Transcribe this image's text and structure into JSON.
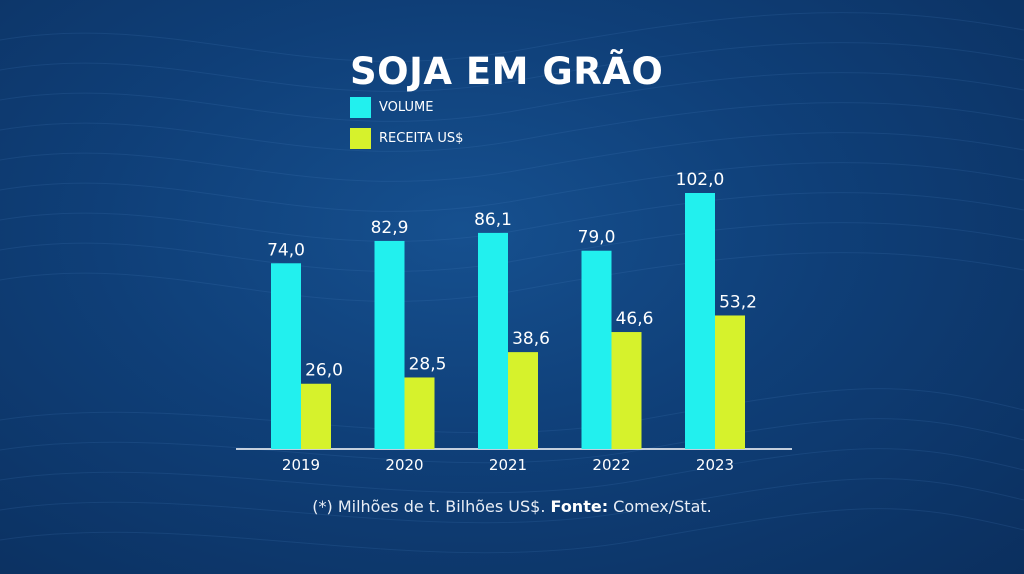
{
  "chart_data": {
    "type": "bar",
    "title": "SOJA EM GRÃO",
    "categories": [
      "2019",
      "2020",
      "2021",
      "2022",
      "2023"
    ],
    "series": [
      {
        "name": "VOLUME",
        "color": "#22f0ee",
        "values": [
          74.0,
          82.9,
          86.1,
          79.0,
          102.0
        ]
      },
      {
        "name": "RECEITA US$",
        "color": "#d6f22c",
        "values": [
          26.0,
          28.5,
          38.6,
          46.6,
          53.2
        ]
      }
    ],
    "value_labels": [
      [
        "74,0",
        "82,9",
        "86,1",
        "79,0",
        "102,0"
      ],
      [
        "26,0",
        "28,5",
        "38,6",
        "46,6",
        "53,2"
      ]
    ],
    "xlabel": "",
    "ylabel": "",
    "ylim": [
      0,
      102.0
    ],
    "grid": false,
    "legend_position": "top-left"
  },
  "footnote": {
    "prefix": "(*) Milhões de t. Bilhões US$. ",
    "source_label": "Fonte:",
    "source": " Comex/Stat."
  }
}
